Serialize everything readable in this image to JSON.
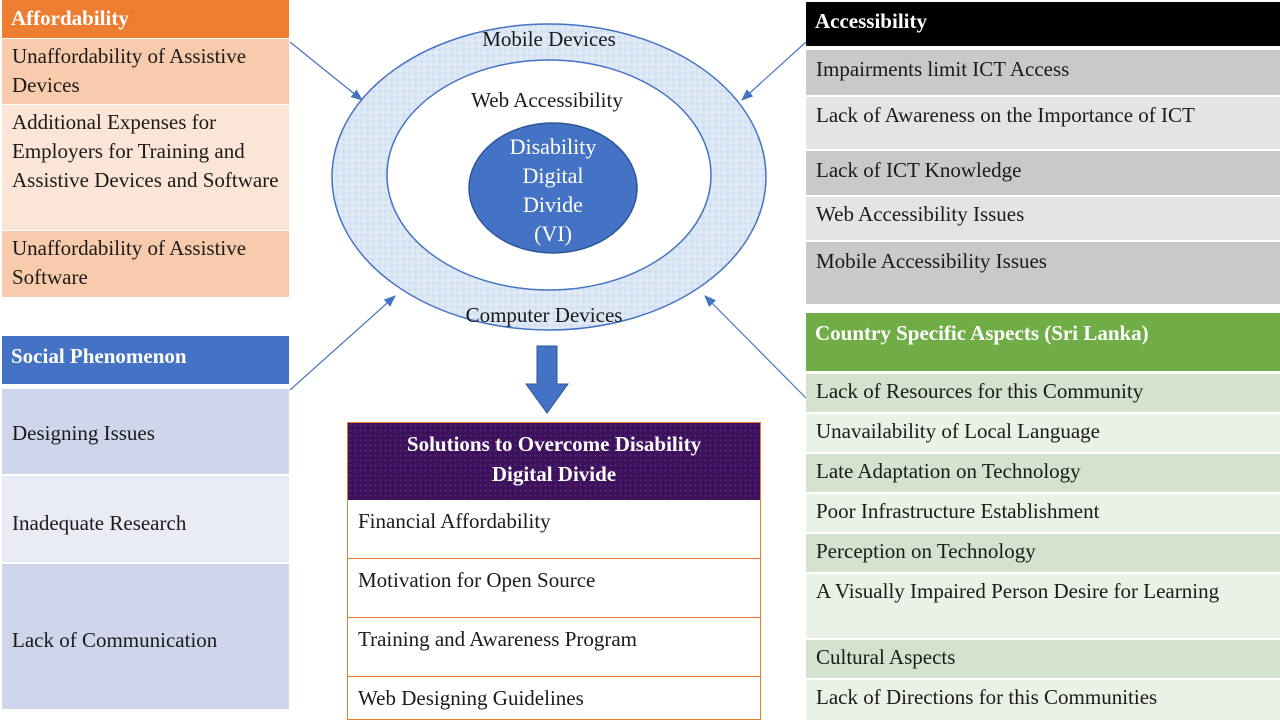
{
  "colors": {
    "affordability_header": "#ed7d31",
    "affordability_row_a": "#f8cbad",
    "affordability_row_b": "#fbe5d6",
    "accessibility_header": "#000000",
    "accessibility_row_a": "#c9c9c9",
    "accessibility_row_b": "#e4e4e4",
    "social_header": "#4472c4",
    "social_row_a": "#cfd5ea",
    "social_row_b": "#e9ebf5",
    "country_header": "#70ad47",
    "country_row_a": "#d4e3cd",
    "country_row_b": "#eaf1e6",
    "solutions_header": "#3b1159",
    "core_circle": "#4472c4",
    "ring": "#dde8f6"
  },
  "affordability": {
    "header": "Affordability",
    "items": [
      "Unaffordability of Assistive Devices",
      "Additional Expenses for Employers for Training and Assistive Devices and Software",
      "Unaffordability of Assistive Software"
    ]
  },
  "accessibility": {
    "header": "Accessibility",
    "items": [
      "Impairments limit ICT Access",
      "Lack of Awareness on the Importance of ICT",
      "Lack of ICT Knowledge",
      "Web Accessibility Issues",
      "Mobile Accessibility Issues"
    ]
  },
  "social": {
    "header": "Social Phenomenon",
    "items": [
      "Designing Issues",
      "Inadequate Research",
      "Lack of Communication"
    ]
  },
  "country": {
    "header": "Country Specific Aspects (Sri Lanka)",
    "items": [
      "Lack of Resources for this Community",
      "Unavailability of Local Language",
      "Late Adaptation on Technology",
      "Poor Infrastructure Establishment",
      "Perception on Technology",
      "A Visually Impaired Person Desire for Learning",
      "Cultural Aspects",
      "Lack of Directions for this Communities"
    ]
  },
  "center": {
    "outer_top": "Mobile Devices",
    "outer_bottom": "Computer Devices",
    "inner": "Web Accessibility",
    "core_lines": [
      "Disability",
      "Digital",
      "Divide",
      "(VI)"
    ]
  },
  "solutions": {
    "header": "Solutions to Overcome Disability Digital Divide",
    "items": [
      "Financial Affordability",
      "Motivation for Open Source",
      "Training and Awareness Program",
      "Web Designing Guidelines"
    ]
  }
}
